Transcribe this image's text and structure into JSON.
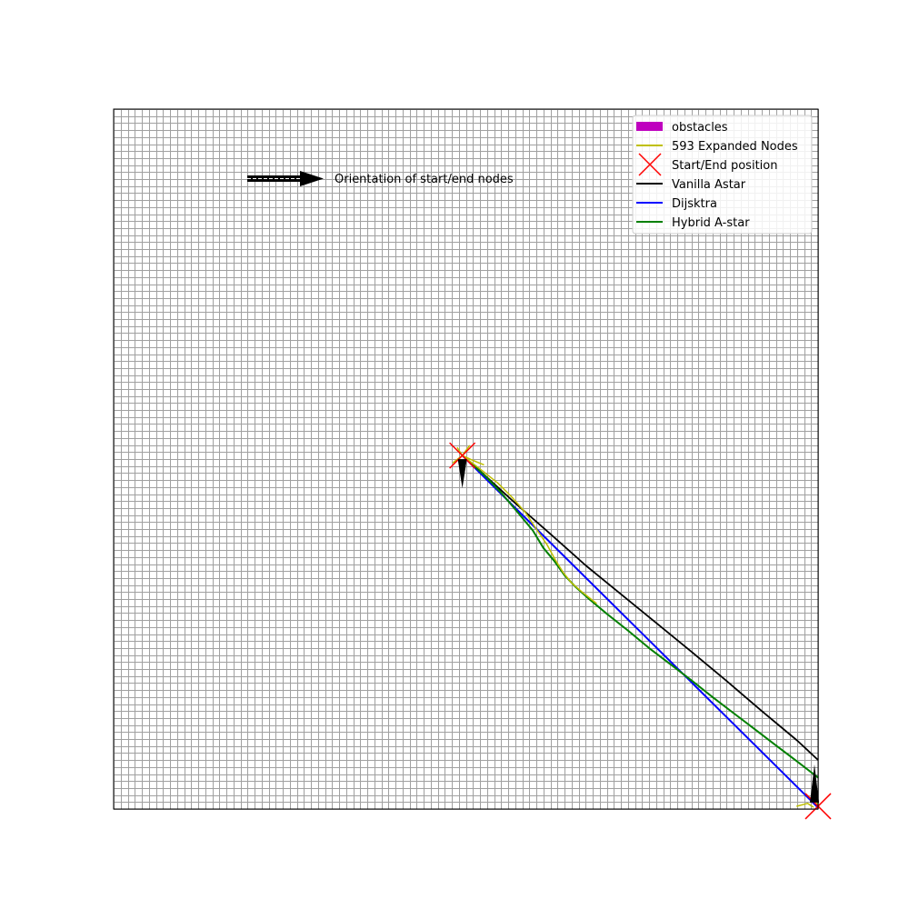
{
  "chart_data": {
    "type": "line",
    "title": "",
    "xlabel": "",
    "ylabel": "",
    "xlim": [
      0,
      100
    ],
    "ylim": [
      0,
      100
    ],
    "grid": true,
    "grid_step": 1,
    "legend_position": "top-right",
    "legend": [
      {
        "label": "obstacles",
        "color": "#bf00bf",
        "kind": "patch"
      },
      {
        "label": "593 Expanded Nodes",
        "color": "#bfbf00",
        "kind": "line"
      },
      {
        "label": "Start/End position",
        "color": "#ff0000",
        "kind": "cross"
      },
      {
        "label": "Vanilla Astar",
        "color": "#000000",
        "kind": "line"
      },
      {
        "label": "Dijsktra",
        "color": "#0000ff",
        "kind": "line"
      },
      {
        "label": "Hybrid A-star",
        "color": "#008000",
        "kind": "line"
      }
    ],
    "annotation": {
      "text": "Orientation of start/end nodes"
    },
    "start": {
      "x": 49.5,
      "y": 50.5
    },
    "end": {
      "x": 100,
      "y": 0.4
    },
    "series": [
      {
        "name": "Dijsktra",
        "color": "#0000ff",
        "width": 2,
        "points": [
          [
            49.5,
            50.5
          ],
          [
            100,
            0.2
          ]
        ]
      },
      {
        "name": "Vanilla Astar",
        "color": "#000000",
        "width": 1.8,
        "points": [
          [
            49.5,
            50.5
          ],
          [
            52,
            48.3
          ],
          [
            57,
            43.7
          ],
          [
            62,
            39.3
          ],
          [
            67,
            34.8
          ],
          [
            72,
            30.7
          ],
          [
            77,
            26.6
          ],
          [
            82,
            22.5
          ],
          [
            87,
            18.3
          ],
          [
            92,
            14.0
          ],
          [
            97,
            9.8
          ],
          [
            100,
            7.0
          ]
        ]
      },
      {
        "name": "Hybrid A-star",
        "color": "#008000",
        "width": 2,
        "points": [
          [
            49.5,
            50.5
          ],
          [
            51,
            49.2
          ],
          [
            53,
            47.3
          ],
          [
            55,
            45.2
          ],
          [
            57,
            42.8
          ],
          [
            59.5,
            39.8
          ],
          [
            61,
            37.3
          ],
          [
            62.5,
            35.5
          ],
          [
            64,
            33.4
          ],
          [
            65.5,
            31.8
          ],
          [
            67.5,
            30.0
          ],
          [
            70,
            27.9
          ],
          [
            73,
            25.5
          ],
          [
            76,
            23.0
          ],
          [
            79,
            20.7
          ],
          [
            82,
            18.4
          ],
          [
            85,
            16.0
          ],
          [
            88,
            13.7
          ],
          [
            91,
            11.4
          ],
          [
            94,
            9.1
          ],
          [
            97,
            6.8
          ],
          [
            100,
            4.5
          ]
        ]
      },
      {
        "name": "593 Expanded Nodes",
        "color": "#bfbf00",
        "width": 1.5,
        "points": [
          [
            49.5,
            50.5
          ],
          [
            52,
            48.6
          ],
          [
            54.5,
            46.6
          ],
          [
            56.5,
            44.6
          ],
          [
            58.5,
            42.3
          ],
          [
            60,
            40.0
          ],
          [
            61.5,
            37.8
          ],
          [
            62.7,
            35.6
          ],
          [
            63.8,
            33.8
          ],
          [
            65,
            32.3
          ],
          [
            66.5,
            31.0
          ],
          [
            68.5,
            29.4
          ]
        ]
      },
      {
        "name": "593 Expanded Nodes",
        "color": "#bfbf00",
        "width": 1.5,
        "points": [
          [
            48.2,
            49.5
          ],
          [
            49.5,
            50.5
          ],
          [
            51,
            49.8
          ],
          [
            52.5,
            49.2
          ]
        ]
      },
      {
        "name": "593 Expanded Nodes",
        "color": "#bfbf00",
        "width": 1.5,
        "points": [
          [
            48.8,
            51.6
          ],
          [
            49.5,
            50.5
          ],
          [
            50.5,
            51.9
          ]
        ]
      },
      {
        "name": "593 Expanded Nodes",
        "color": "#bfbf00",
        "width": 1.5,
        "points": [
          [
            97,
            0.4
          ],
          [
            98.5,
            0.8
          ],
          [
            99.3,
            0.3
          ]
        ]
      },
      {
        "name": "593 Expanded Nodes",
        "color": "#bfbf00",
        "width": 1.5,
        "points": [
          [
            99.2,
            2.8
          ],
          [
            99.6,
            1.6
          ],
          [
            100,
            0.4
          ]
        ]
      }
    ]
  }
}
